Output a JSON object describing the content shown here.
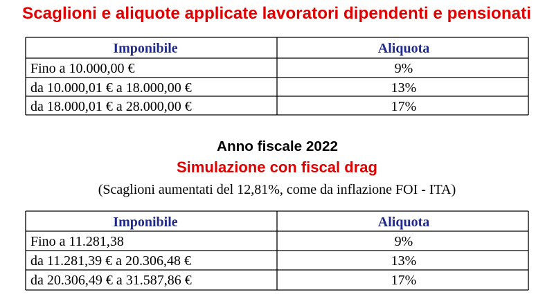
{
  "header": {
    "title": "Scaglioni e aliquote applicate lavoratori dipendenti e pensionati"
  },
  "table1": {
    "columns": [
      "Imponibile",
      "Aliquota"
    ],
    "rows": [
      [
        "Fino a 10.000,00 €",
        "9%"
      ],
      [
        "da 10.000,01 € a 18.000,00 €",
        "13%"
      ],
      [
        "da 18.000,01 € a 28.000,00 €",
        "17%"
      ]
    ]
  },
  "section2": {
    "year": "Anno fiscale 2022",
    "title": "Simulazione con fiscal drag",
    "note": "(Scaglioni aumentati del 12,81%, come da inflazione FOI - ITA)"
  },
  "table2": {
    "columns": [
      "Imponibile",
      "Aliquota"
    ],
    "rows": [
      [
        "Fino a 11.281,38",
        "9%"
      ],
      [
        "da 11.281,39 € a 20.306,48 €",
        "13%"
      ],
      [
        "da 20.306,49 € a 31.587,86 €",
        "17%"
      ]
    ]
  }
}
